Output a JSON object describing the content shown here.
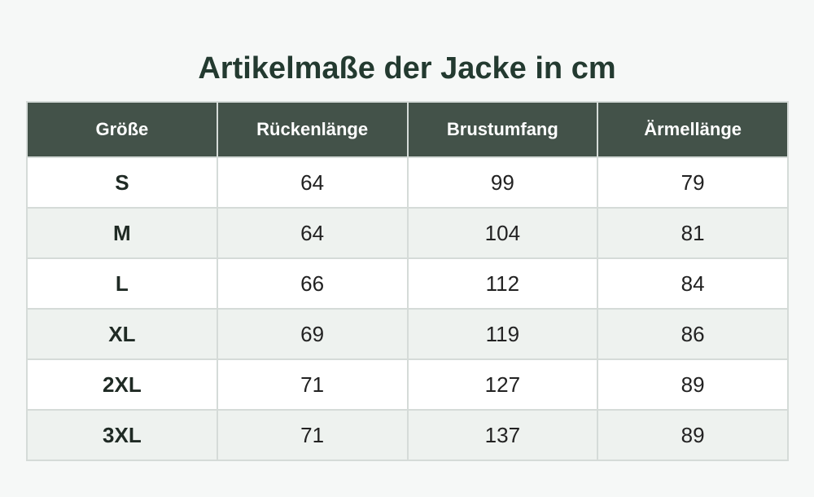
{
  "title": "Artikelmaße der Jacke in cm",
  "columns": [
    "Größe",
    "Rückenlänge",
    "Brustumfang",
    "Ärmellänge"
  ],
  "rows": [
    [
      "S",
      "64",
      "99",
      "79"
    ],
    [
      "M",
      "64",
      "104",
      "81"
    ],
    [
      "L",
      "66",
      "112",
      "84"
    ],
    [
      "XL",
      "69",
      "119",
      "86"
    ],
    [
      "2XL",
      "71",
      "127",
      "89"
    ],
    [
      "3XL",
      "71",
      "137",
      "89"
    ]
  ],
  "colors": {
    "header_bg": "#435249",
    "header_text": "#ffffff",
    "row_alt_bg": "#eef2ef",
    "row_bg": "#ffffff",
    "page_bg": "#f6f8f7"
  }
}
